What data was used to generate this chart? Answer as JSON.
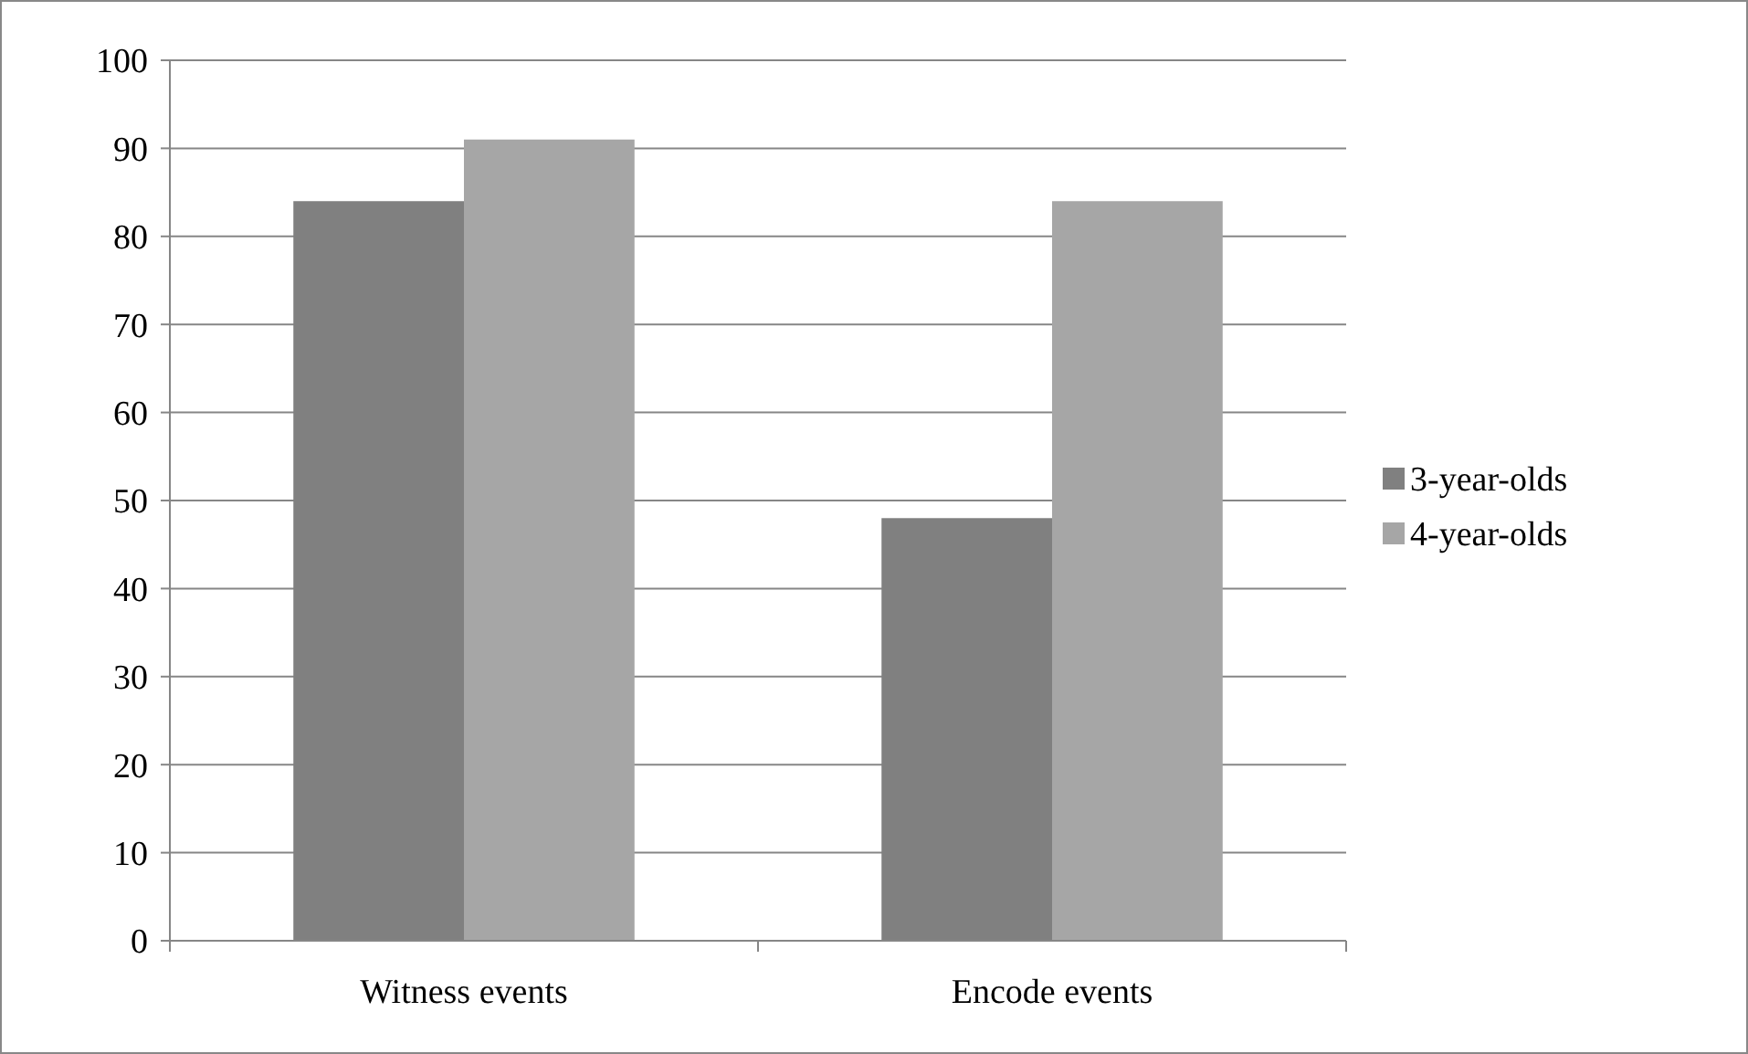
{
  "chart_data": {
    "type": "bar",
    "categories": [
      "Witness events",
      "Encode events"
    ],
    "series": [
      {
        "name": "3-year-olds",
        "color": "#808080",
        "values": [
          84,
          48
        ]
      },
      {
        "name": "4-year-olds",
        "color": "#a6a6a6",
        "values": [
          91,
          84
        ]
      }
    ],
    "ylim": [
      0,
      100
    ],
    "yticks": [
      0,
      10,
      20,
      30,
      40,
      50,
      60,
      70,
      80,
      90,
      100
    ],
    "grid": "y",
    "legend": "right"
  }
}
